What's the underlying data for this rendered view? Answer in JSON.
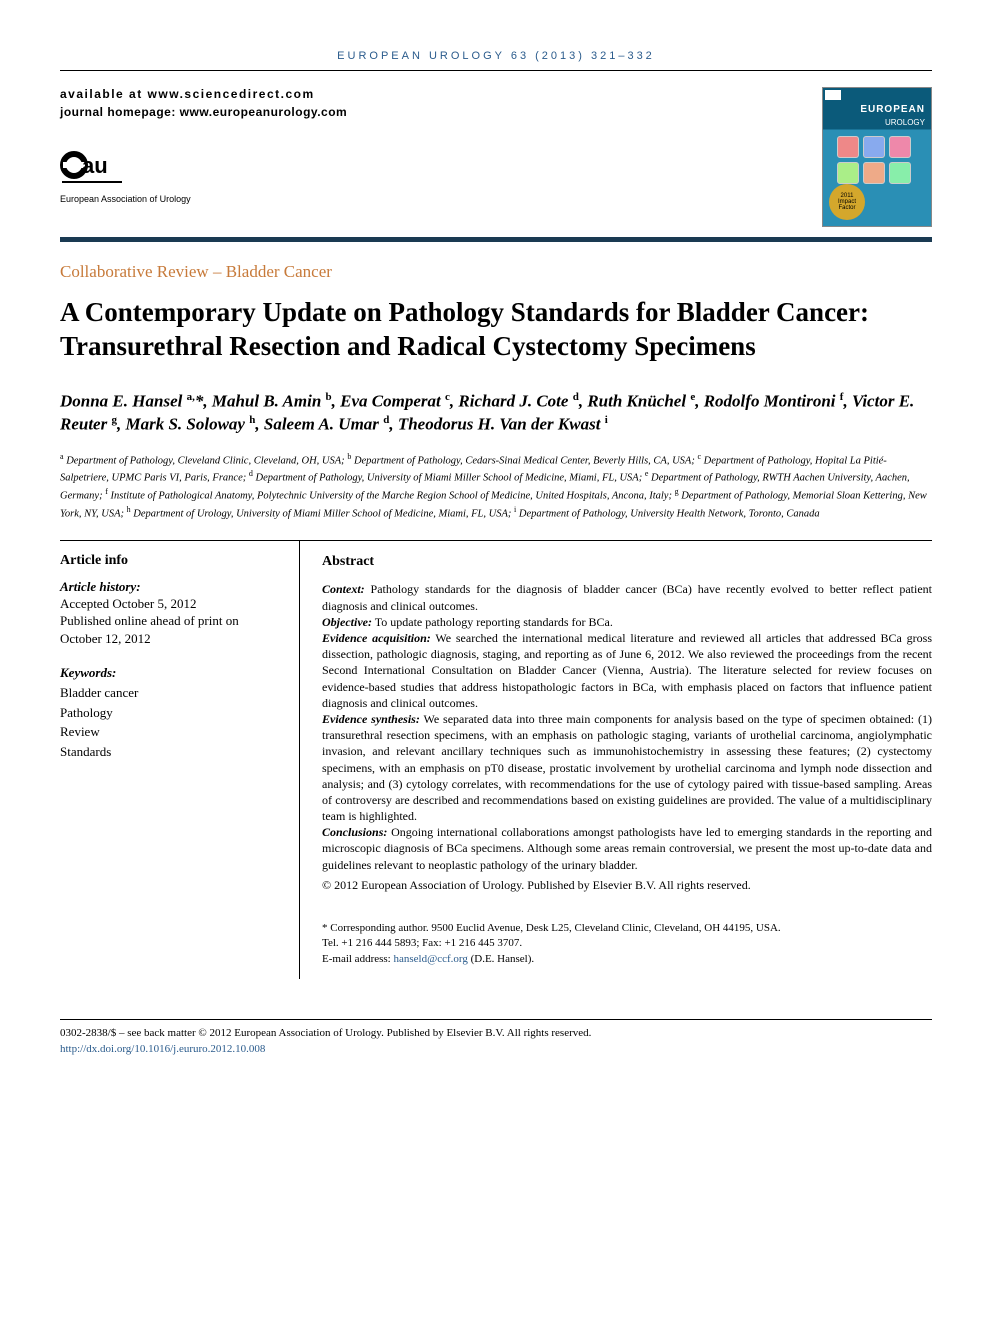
{
  "running_head": "EUROPEAN UROLOGY 63 (2013) 321–332",
  "availability": "available at www.sciencedirect.com",
  "homepage": "journal homepage: www.europeanurology.com",
  "cover": {
    "masthead": "EUROPEAN",
    "subhead": "UROLOGY",
    "badge": "2011 Impact Factor"
  },
  "society": "European Association of Urology",
  "category": "Collaborative Review – Bladder Cancer",
  "title": "A Contemporary Update on Pathology Standards for Bladder Cancer: Transurethral Resection and Radical Cystectomy Specimens",
  "authors_html": "Donna E. Hansel <sup>a,</sup>*, Mahul B. Amin <sup>b</sup>, Eva Comperat <sup>c</sup>, Richard J. Cote <sup>d</sup>, Ruth Knüchel <sup>e</sup>, Rodolfo Montironi <sup>f</sup>, Victor E. Reuter <sup>g</sup>, Mark S. Soloway <sup>h</sup>, Saleem A. Umar <sup>d</sup>, Theodorus H. Van der Kwast <sup>i</sup>",
  "affiliations_html": "<sup>a</sup> Department of Pathology, Cleveland Clinic, Cleveland, OH, USA; <sup>b</sup> Department of Pathology, Cedars-Sinai Medical Center, Beverly Hills, CA, USA; <sup>c</sup> Department of Pathology, Hopital La Pitié-Salpetriere, UPMC Paris VI, Paris, France; <sup>d</sup> Department of Pathology, University of Miami Miller School of Medicine, Miami, FL, USA; <sup>e</sup> Department of Pathology, RWTH Aachen University, Aachen, Germany; <sup>f</sup> Institute of Pathological Anatomy, Polytechnic University of the Marche Region School of Medicine, United Hospitals, Ancona, Italy; <sup>g</sup> Department of Pathology, Memorial Sloan Kettering, New York, NY, USA; <sup>h</sup> Department of Urology, University of Miami Miller School of Medicine, Miami, FL, USA; <sup>i</sup> Department of Pathology, University Health Network, Toronto, Canada",
  "article_info_heading": "Article info",
  "history_label": "Article history:",
  "history_body": "Accepted October 5, 2012\nPublished online ahead of print on October 12, 2012",
  "keywords_label": "Keywords:",
  "keywords": [
    "Bladder cancer",
    "Pathology",
    "Review",
    "Standards"
  ],
  "abstract_heading": "Abstract",
  "abstract": {
    "context_label": "Context:",
    "context": " Pathology standards for the diagnosis of bladder cancer (BCa) have recently evolved to better reflect patient diagnosis and clinical outcomes.",
    "objective_label": "Objective:",
    "objective": " To update pathology reporting standards for BCa.",
    "evidence_acq_label": "Evidence acquisition:",
    "evidence_acq": " We searched the international medical literature and reviewed all articles that addressed BCa gross dissection, pathologic diagnosis, staging, and reporting as of June 6, 2012. We also reviewed the proceedings from the recent Second International Consultation on Bladder Cancer (Vienna, Austria). The literature selected for review focuses on evidence-based studies that address histopathologic factors in BCa, with emphasis placed on factors that influence patient diagnosis and clinical outcomes.",
    "evidence_syn_label": "Evidence synthesis:",
    "evidence_syn": " We separated data into three main components for analysis based on the type of specimen obtained: (1) transurethral resection specimens, with an emphasis on pathologic staging, variants of urothelial carcinoma, angiolymphatic invasion, and relevant ancillary techniques such as immunohistochemistry in assessing these features; (2) cystectomy specimens, with an emphasis on pT0 disease, prostatic involvement by urothelial carcinoma and lymph node dissection and analysis; and (3) cytology correlates, with recommendations for the use of cytology paired with tissue-based sampling. Areas of controversy are described and recommendations based on existing guidelines are provided. The value of a multidisciplinary team is highlighted.",
    "conclusions_label": "Conclusions:",
    "conclusions": " Ongoing international collaborations amongst pathologists have led to emerging standards in the reporting and microscopic diagnosis of BCa specimens. Although some areas remain controversial, we present the most up-to-date data and guidelines relevant to neoplastic pathology of the urinary bladder."
  },
  "copyright_abs": "© 2012 European Association of Urology. Published by Elsevier B.V. All rights reserved.",
  "corresponding": {
    "line1": "* Corresponding author. 9500 Euclid Avenue, Desk L25, Cleveland Clinic, Cleveland, OH 44195, USA.",
    "line2": "Tel. +1 216 444 5893; Fax: +1 216 445 3707.",
    "email_label": "E-mail address: ",
    "email": "hanseld@ccf.org",
    "email_suffix": " (D.E. Hansel)."
  },
  "footer": {
    "line1": "0302-2838/$ – see back matter © 2012 European Association of Urology. Published by Elsevier B.V. All rights reserved.",
    "doi": "http://dx.doi.org/10.1016/j.eururo.2012.10.008"
  },
  "colors": {
    "link": "#2a5b8c",
    "category": "#c77a3a",
    "rule": "#1a3a52"
  }
}
